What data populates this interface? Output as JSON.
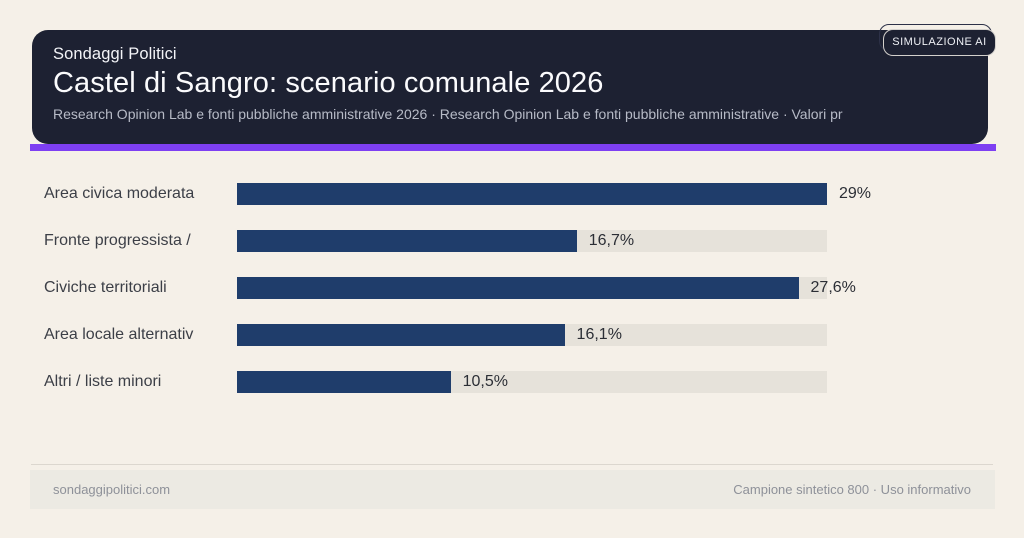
{
  "badge": {
    "label": "SIMULAZIONE AI"
  },
  "header": {
    "kicker": "Sondaggi Politici",
    "title": "Castel di Sangro: scenario comunale 2026",
    "subtitle": "Research Opinion Lab e fonti pubbliche amministrative 2026 · Research Opinion Lab e fonti pubbliche amministrative · Valori pr"
  },
  "chart_data": {
    "type": "bar",
    "orientation": "horizontal",
    "title": "Castel di Sangro: scenario comunale 2026",
    "categories": [
      "Area civica moderata",
      "Fronte progressista /",
      "Civiche territoriali",
      "Area locale alternativ",
      "Altri / liste minori"
    ],
    "values": [
      29,
      16.7,
      27.6,
      16.1,
      10.5
    ],
    "value_labels": [
      "29%",
      "16,7%",
      "27,6%",
      "16,1%",
      "10,5%"
    ],
    "xlim": [
      0,
      29
    ],
    "grid": false,
    "legend": false,
    "bar_color": "#1f3d6b",
    "track_color": "#e6e2da"
  },
  "footer": {
    "left": "sondaggipolitici.com",
    "right": "Campione sintetico 800 · Uso informativo"
  },
  "colors": {
    "page_background": "#f5f0e8",
    "header_background": "#1d2132",
    "accent": "#7e3ff2",
    "bar": "#1f3d6b",
    "track": "#e6e2da",
    "label_text": "#3c3f47",
    "value_text": "#2b2e35",
    "subtitle_text": "#b7bbc7",
    "footer_background": "#eceae3",
    "footer_text": "#8e9199"
  }
}
